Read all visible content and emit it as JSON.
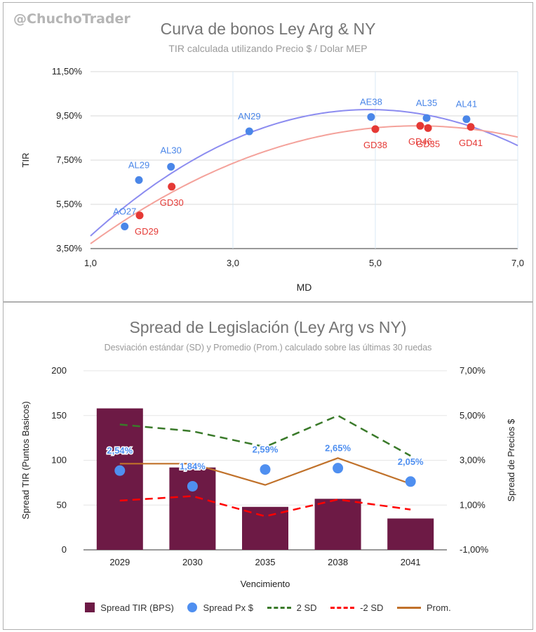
{
  "watermark": "@ChuchoTrader",
  "chart_data": [
    {
      "type": "scatter",
      "title": "Curva de bonos Ley Arg & NY",
      "subtitle": "TIR calculada utilizando Precio $ / Dolar MEP",
      "xlabel": "MD",
      "ylabel": "TIR",
      "xlim": [
        1.0,
        7.0
      ],
      "ylim": [
        3.5,
        11.5
      ],
      "x_ticks": [
        "1,0",
        "3,0",
        "5,0",
        "7,0"
      ],
      "y_ticks": [
        "3,50%",
        "5,50%",
        "7,50%",
        "9,50%",
        "11,50%"
      ],
      "grid": true,
      "series": [
        {
          "color": "#4a86e8",
          "trend_color": "#8c8cf0",
          "points": [
            {
              "label": "AO27",
              "x": 1.48,
              "y": 4.5
            },
            {
              "label": "AL29",
              "x": 1.68,
              "y": 6.6
            },
            {
              "label": "AL30",
              "x": 2.13,
              "y": 7.2
            },
            {
              "label": "AN29",
              "x": 3.23,
              "y": 8.8
            },
            {
              "label": "AE38",
              "x": 4.94,
              "y": 9.45
            },
            {
              "label": "AL35",
              "x": 5.72,
              "y": 9.4
            },
            {
              "label": "AL41",
              "x": 6.28,
              "y": 9.35
            }
          ]
        },
        {
          "color": "#e53935",
          "trend_color": "#f4a29b",
          "points": [
            {
              "label": "GD29",
              "x": 1.69,
              "y": 5.0
            },
            {
              "label": "GD30",
              "x": 2.14,
              "y": 6.3
            },
            {
              "label": "GD38",
              "x": 5.0,
              "y": 8.9
            },
            {
              "label": "GD46",
              "x": 5.63,
              "y": 9.05
            },
            {
              "label": "GD35",
              "x": 5.74,
              "y": 8.95
            },
            {
              "label": "GD41",
              "x": 6.34,
              "y": 9.0
            }
          ]
        }
      ]
    },
    {
      "type": "bar",
      "title": "Spread de Legislación (Ley Arg vs NY)",
      "subtitle": "Desviación estándar (SD) y Promedio (Prom.) calculado sobre las últimas 30 ruedas",
      "xlabel": "Vencimiento",
      "ylabel": "Spread TIR (Puntos Basicos)",
      "y2label": "Spread de Precios $",
      "categories": [
        "2029",
        "2030",
        "2035",
        "2038",
        "2041"
      ],
      "ylim": [
        0,
        200
      ],
      "y_ticks": [
        "0",
        "50",
        "100",
        "150",
        "200"
      ],
      "y2lim": [
        -1.0,
        7.0
      ],
      "y2_ticks": [
        "-1,00%",
        "1,00%",
        "3,00%",
        "5,00%",
        "7,00%"
      ],
      "series": [
        {
          "name": "Spread TIR (BPS)",
          "kind": "bar",
          "axis": "left",
          "color": "#6d1a45",
          "values": [
            158,
            92,
            48,
            57,
            35
          ]
        },
        {
          "name": "Spread Px $",
          "kind": "dot",
          "axis": "right",
          "color": "#4f8ff0",
          "values": [
            2.54,
            1.84,
            2.59,
            2.65,
            2.05
          ],
          "labels": [
            "2,54%",
            "1,84%",
            "2,59%",
            "2,65%",
            "2,05%"
          ]
        },
        {
          "name": "2 SD",
          "kind": "dashed",
          "axis": "right",
          "color": "#3a7a2a",
          "values": [
            4.6,
            4.3,
            3.6,
            5.0,
            3.2
          ]
        },
        {
          "name": "-2 SD",
          "kind": "dashed",
          "axis": "right",
          "color": "#ff0000",
          "values": [
            1.2,
            1.4,
            0.5,
            1.25,
            0.8
          ]
        },
        {
          "name": "Prom.",
          "kind": "line",
          "axis": "right",
          "color": "#c0712a",
          "values": [
            2.85,
            2.85,
            1.9,
            3.1,
            1.95
          ]
        }
      ]
    }
  ]
}
